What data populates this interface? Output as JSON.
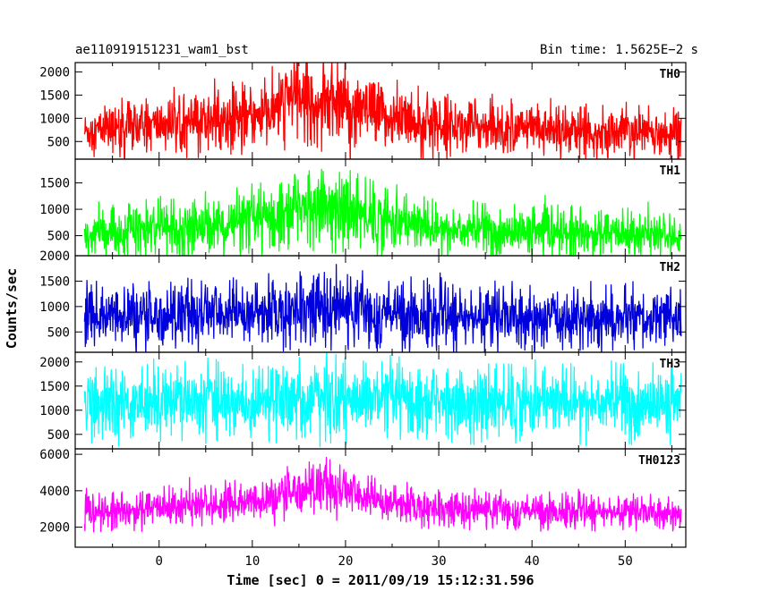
{
  "header": {
    "left_title": "ae110919151231_wam1_bst",
    "right_title": "Bin time: 1.5625E−2 s"
  },
  "chart_data": {
    "type": "line",
    "xlabel": "Time [sec] 0 = 2011/09/19 15:12:31.596",
    "ylabel": "Counts/sec",
    "xlim": [
      -9,
      56.5
    ],
    "x_ticks": [
      0,
      10,
      20,
      30,
      40,
      50
    ],
    "data_x_range": [
      -8,
      56
    ],
    "panels": [
      {
        "name": "TH0",
        "color": "#ff0000",
        "ylim": [
          120,
          2200
        ],
        "y_ticks": [
          500,
          1000,
          1500,
          2000
        ],
        "x": [
          -8,
          -4,
          0,
          4,
          8,
          12,
          14,
          16,
          18,
          20,
          24,
          30,
          40,
          50,
          56
        ],
        "mean": [
          720,
          800,
          860,
          920,
          980,
          1060,
          1450,
          1400,
          1350,
          1250,
          1050,
          860,
          780,
          720,
          680
        ],
        "halfwidth": [
          380,
          430,
          460,
          500,
          520,
          560,
          720,
          700,
          680,
          640,
          560,
          470,
          430,
          400,
          380
        ]
      },
      {
        "name": "TH1",
        "color": "#00ff00",
        "ylim": [
          120,
          1950
        ],
        "y_ticks": [
          500,
          1000,
          1500
        ],
        "x": [
          -8,
          -4,
          0,
          4,
          8,
          12,
          14,
          16,
          18,
          20,
          24,
          30,
          40,
          50,
          56
        ],
        "mean": [
          520,
          560,
          620,
          680,
          720,
          800,
          1000,
          1050,
          1100,
          1000,
          800,
          620,
          560,
          520,
          500
        ],
        "halfwidth": [
          320,
          340,
          380,
          420,
          440,
          480,
          560,
          580,
          600,
          560,
          480,
          380,
          340,
          320,
          310
        ]
      },
      {
        "name": "TH2",
        "color": "#0000dd",
        "ylim": [
          100,
          2000
        ],
        "y_ticks": [
          500,
          1000,
          1500,
          2000
        ],
        "x": [
          -8,
          -4,
          0,
          4,
          8,
          12,
          14,
          16,
          18,
          20,
          24,
          30,
          40,
          50,
          56
        ],
        "mean": [
          780,
          800,
          820,
          850,
          870,
          900,
          950,
          1000,
          1020,
          950,
          880,
          820,
          780,
          760,
          740
        ],
        "halfwidth": [
          460,
          470,
          480,
          480,
          490,
          500,
          520,
          540,
          560,
          520,
          500,
          480,
          470,
          460,
          450
        ]
      },
      {
        "name": "TH3",
        "color": "#00ffff",
        "ylim": [
          200,
          2200
        ],
        "y_ticks": [
          500,
          1000,
          1500,
          2000
        ],
        "x": [
          -8,
          -4,
          0,
          4,
          8,
          12,
          14,
          16,
          18,
          20,
          24,
          30,
          40,
          50,
          56
        ],
        "mean": [
          1150,
          1160,
          1170,
          1180,
          1190,
          1200,
          1220,
          1230,
          1240,
          1220,
          1200,
          1180,
          1160,
          1150,
          1140
        ],
        "halfwidth": [
          560,
          570,
          580,
          580,
          590,
          600,
          620,
          620,
          630,
          620,
          600,
          580,
          570,
          560,
          560
        ]
      },
      {
        "name": "TH0123",
        "color": "#ff00ff",
        "ylim": [
          900,
          6300
        ],
        "y_ticks": [
          2000,
          4000,
          6000
        ],
        "x": [
          -8,
          -4,
          0,
          4,
          8,
          12,
          14,
          16,
          18,
          20,
          24,
          30,
          40,
          50,
          56
        ],
        "mean": [
          2750,
          2850,
          3050,
          3200,
          3300,
          3450,
          4000,
          4150,
          4200,
          3950,
          3400,
          3050,
          2900,
          2850,
          2750
        ],
        "halfwidth": [
          650,
          700,
          750,
          800,
          820,
          850,
          1000,
          1050,
          1100,
          1000,
          850,
          750,
          700,
          680,
          650
        ]
      }
    ]
  }
}
